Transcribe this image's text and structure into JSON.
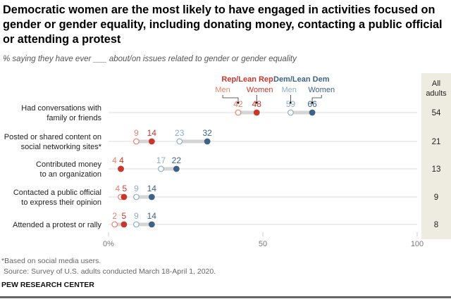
{
  "title": "Democratic women are the most likely to have engaged in activities focused on gender or gender equality, including donating money, contacting a public official or attending a protest",
  "subtitle": "% saying they have ever ___ about/on issues related to gender or gender equality",
  "chart_data": {
    "type": "dot",
    "groups": [
      {
        "name": "Rep/Lean Rep",
        "color": "#c8372d"
      },
      {
        "name": "Dem/Lean Dem",
        "color": "#3e6385"
      }
    ],
    "series": [
      {
        "name": "Men",
        "group": "Rep/Lean Rep",
        "color": "#e8836f",
        "filled": false,
        "values": [
          42,
          9,
          4,
          4,
          2
        ]
      },
      {
        "name": "Women",
        "group": "Rep/Lean Rep",
        "color": "#c8372d",
        "filled": true,
        "values": [
          48,
          14,
          4,
          5,
          5
        ]
      },
      {
        "name": "Men",
        "group": "Dem/Lean Dem",
        "color": "#8eadc7",
        "filled": false,
        "values": [
          59,
          23,
          17,
          9,
          9
        ]
      },
      {
        "name": "Women",
        "group": "Dem/Lean Dem",
        "color": "#3e6385",
        "filled": true,
        "values": [
          66,
          32,
          22,
          14,
          14
        ]
      }
    ],
    "categories": [
      "Had conversations with\nfamily or friends",
      "Posted or shared content on\nsocial networking sites*",
      "Contributed money\nto an organization",
      "Contacted a public official\nto express their opinion",
      "Attended a protest or rally"
    ],
    "all_adults": {
      "label": "All\nadults",
      "values": [
        54,
        21,
        13,
        9,
        8
      ],
      "bg": "#eeebe1"
    },
    "xlim": [
      0,
      100
    ],
    "xticks": [
      "0%",
      "50",
      "100"
    ]
  },
  "footnote": "*Based on social media users.",
  "source": "Source: Survey of U.S. adults conducted March 18-April 1, 2020.",
  "brand": "PEW RESEARCH CENTER"
}
